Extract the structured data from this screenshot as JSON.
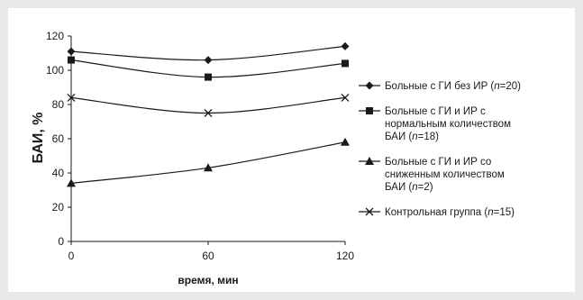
{
  "chart_data": {
    "type": "line",
    "x": [
      0,
      60,
      120
    ],
    "xlabel": "время, мин",
    "ylabel": "БАИ, %",
    "ylim": [
      0,
      120
    ],
    "yticks": [
      0,
      20,
      40,
      60,
      80,
      100,
      120
    ],
    "xticks": [
      0,
      60,
      120
    ],
    "grid": false,
    "legend_position": "right",
    "series": [
      {
        "key": "s1",
        "marker": "diamond",
        "legend_lines": [
          [
            {
              "t": "Больные с ГИ без ИР ("
            },
            {
              "t": "n",
              "i": true
            },
            {
              "t": "=20)"
            }
          ]
        ],
        "values": [
          111,
          106,
          114
        ]
      },
      {
        "key": "s2",
        "marker": "square",
        "legend_lines": [
          [
            {
              "t": "Больные с ГИ и ИР с"
            }
          ],
          [
            {
              "t": "нормальным количеством"
            }
          ],
          [
            {
              "t": "БАИ ("
            },
            {
              "t": "n",
              "i": true
            },
            {
              "t": "=18)"
            }
          ]
        ],
        "values": [
          106,
          96,
          104
        ]
      },
      {
        "key": "s3",
        "marker": "triangle",
        "legend_lines": [
          [
            {
              "t": "Больные с ГИ и ИР со"
            }
          ],
          [
            {
              "t": "сниженным количеством"
            }
          ],
          [
            {
              "t": "БАИ ("
            },
            {
              "t": "n",
              "i": true
            },
            {
              "t": "=2)"
            }
          ]
        ],
        "values": [
          34,
          43,
          58
        ]
      },
      {
        "key": "s4",
        "marker": "cross",
        "legend_lines": [
          [
            {
              "t": "Контрольная группа ("
            },
            {
              "t": "n",
              "i": true
            },
            {
              "t": "=15)"
            }
          ]
        ],
        "values": [
          84,
          75,
          84
        ]
      }
    ]
  }
}
